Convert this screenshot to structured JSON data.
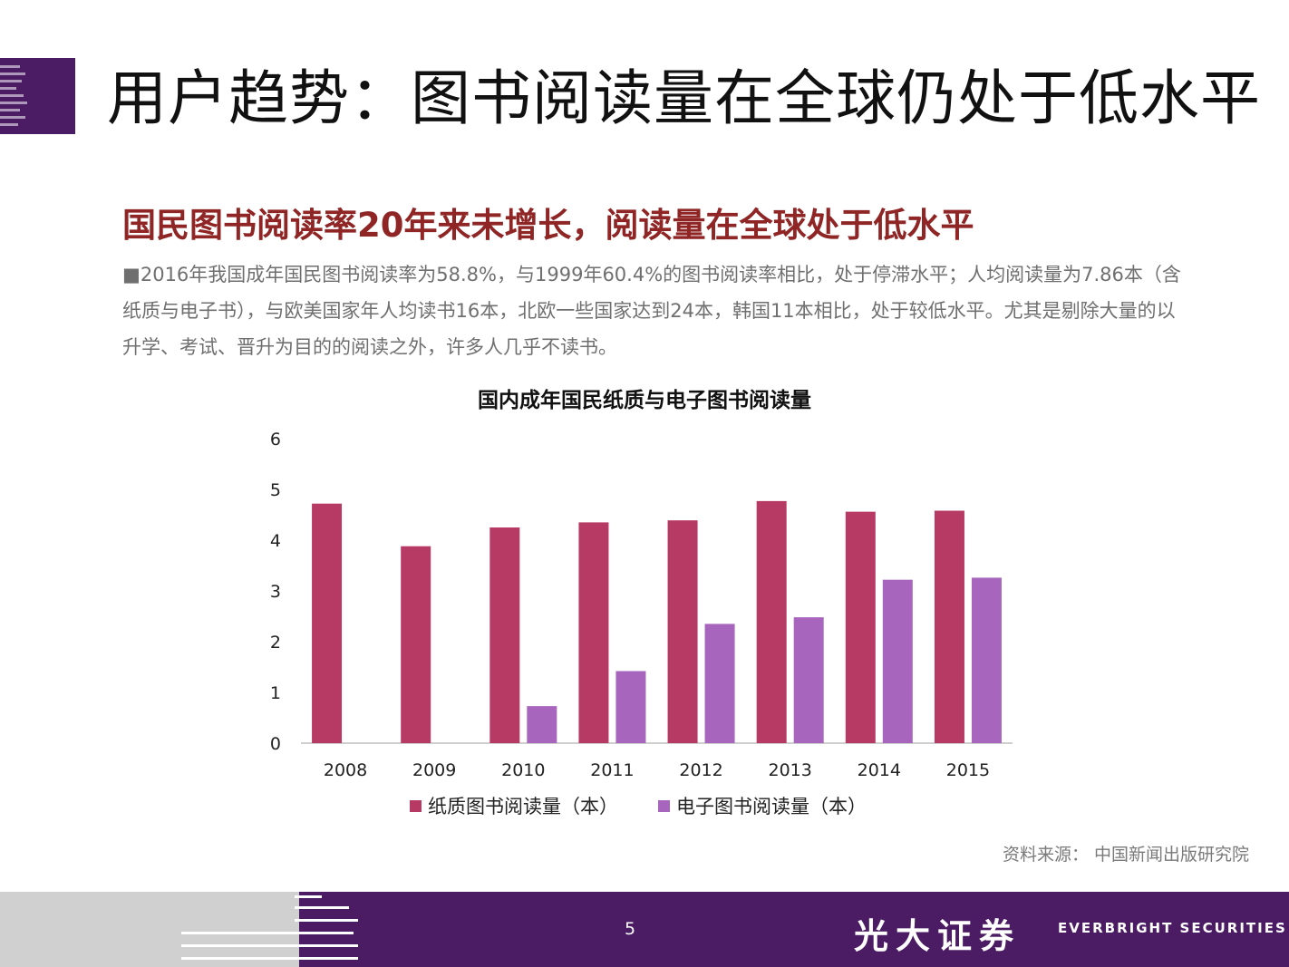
{
  "page": {
    "title": "用户趋势：图书阅读量在全球仍处于低水平",
    "headline": "国民图书阅读率20年来未增长，阅读量在全球处于低水平",
    "body_bullet": "■",
    "body_text": "2016年我国成年国民图书阅读率为58.8%，与1999年60.4%的图书阅读率相比，处于停滞水平；人均阅读量为7.86本（含纸质与电子书），与欧美国家年人均读书16本，北欧一些国家达到24本，韩国11本相比，处于较低水平。尤其是剔除大量的以升学、考试、晋升为目的的阅读之外，许多人几乎不读书。",
    "source": "资料来源： 中国新闻出版研究院",
    "page_number": "5",
    "brand_cn": "光大证券",
    "brand_en": "EVERBRIGHT SECURITIES"
  },
  "chart_data": {
    "type": "bar",
    "title": "国内成年国民纸质与电子图书阅读量",
    "categories": [
      "2008",
      "2009",
      "2010",
      "2011",
      "2012",
      "2013",
      "2014",
      "2015"
    ],
    "series": [
      {
        "name": "纸质图书阅读量（本）",
        "color": "#b73a65",
        "values": [
          4.72,
          3.88,
          4.25,
          4.35,
          4.39,
          4.77,
          4.56,
          4.58
        ]
      },
      {
        "name": "电子图书阅读量（本）",
        "color": "#a865be",
        "values": [
          0,
          0,
          0.73,
          1.42,
          2.35,
          2.48,
          3.22,
          3.26
        ]
      }
    ],
    "ylim": [
      0,
      6
    ],
    "yticks": [
      "0",
      "1",
      "2",
      "3",
      "4",
      "5",
      "6"
    ],
    "grid": false,
    "legend": "bottom"
  },
  "colors": {
    "brand_purple": "#4b1c64",
    "headline_red": "#8f2525",
    "paper_series": "#b73a65",
    "ebook_series": "#a865be"
  }
}
